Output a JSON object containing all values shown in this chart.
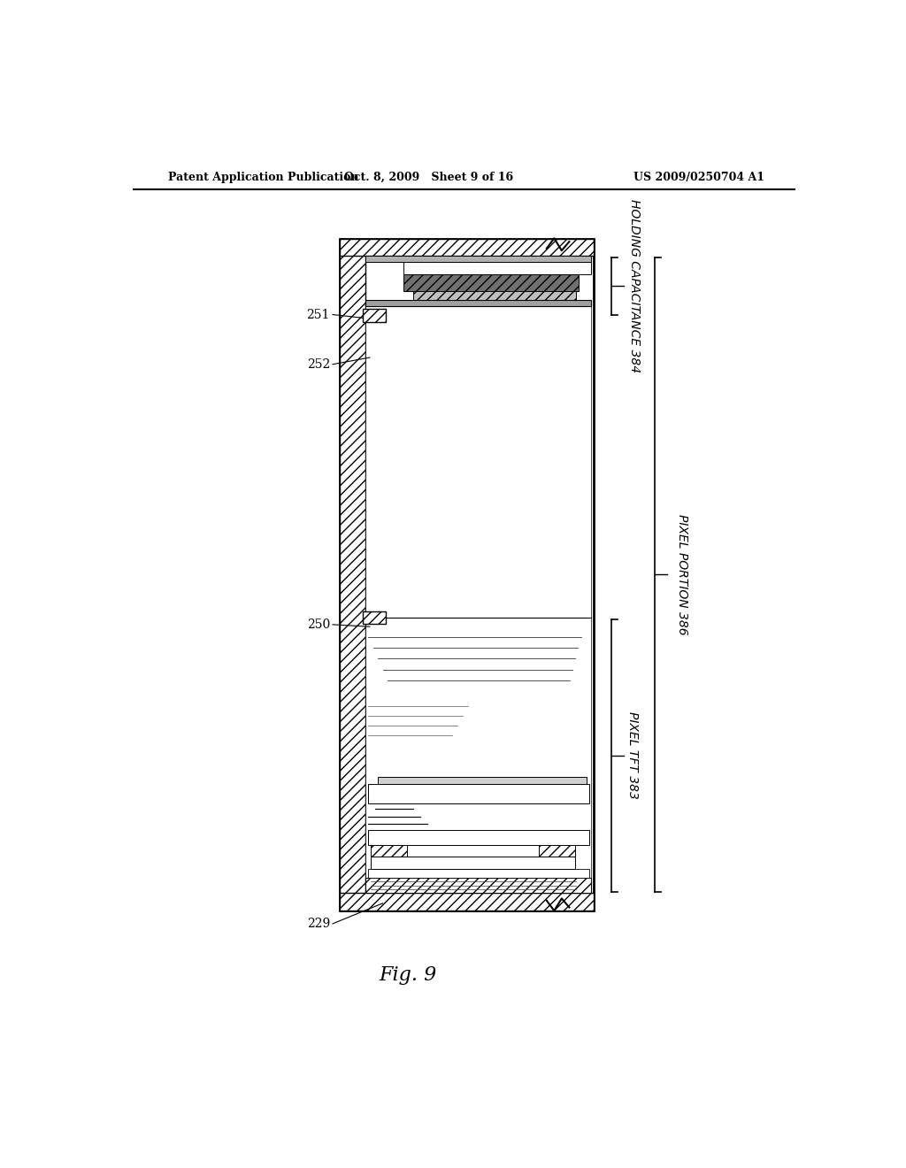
{
  "bg_color": "#ffffff",
  "header_left": "Patent Application Publication",
  "header_center": "Oct. 8, 2009   Sheet 9 of 16",
  "header_right": "US 2009/0250704 A1",
  "fig_label": "Fig. 9",
  "label_251": "251",
  "label_252": "252",
  "label_250": "250",
  "label_229": "229",
  "label_hc": "HOLDING CAPACITANCE 384",
  "label_pp": "PIXEL PORTION 386",
  "label_pt": "PIXEL TFT 383"
}
